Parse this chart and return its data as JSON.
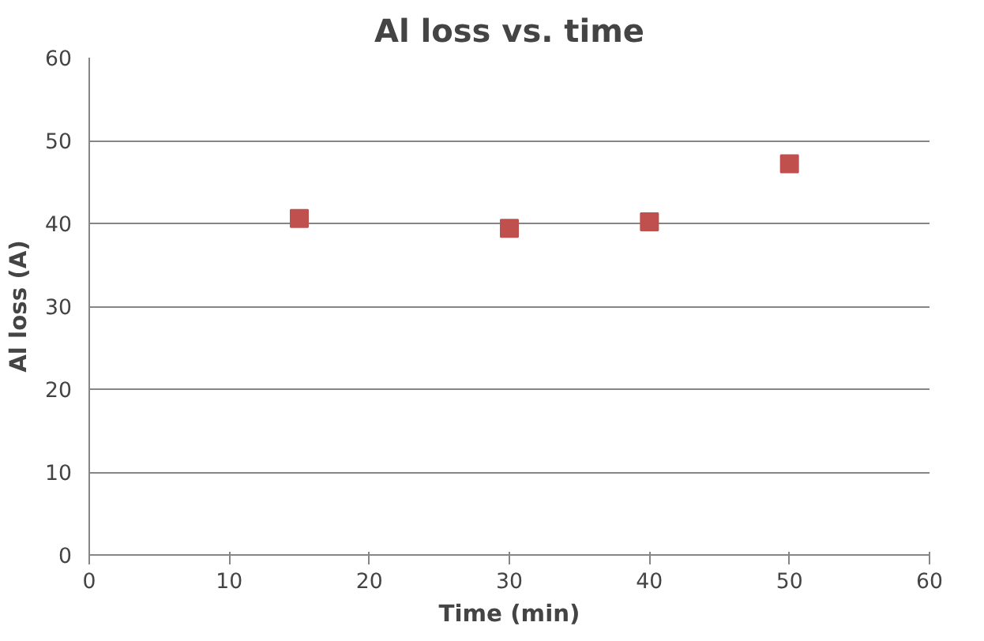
{
  "chart_data": {
    "type": "scatter",
    "title": "Al loss vs. time",
    "xlabel": "Time (min)",
    "ylabel": "Al loss (A)",
    "x": [
      15,
      30,
      40,
      50
    ],
    "series": [
      {
        "color": "#c0504d",
        "values": [
          40.6,
          39.4,
          40.2,
          47.2
        ]
      }
    ],
    "xlim": [
      0,
      60
    ],
    "ylim": [
      0,
      60
    ],
    "xticks": [
      0,
      10,
      20,
      30,
      40,
      50,
      60
    ],
    "yticks": [
      0,
      10,
      20,
      30,
      40,
      50,
      60
    ],
    "grid": "y",
    "marker": "square"
  }
}
